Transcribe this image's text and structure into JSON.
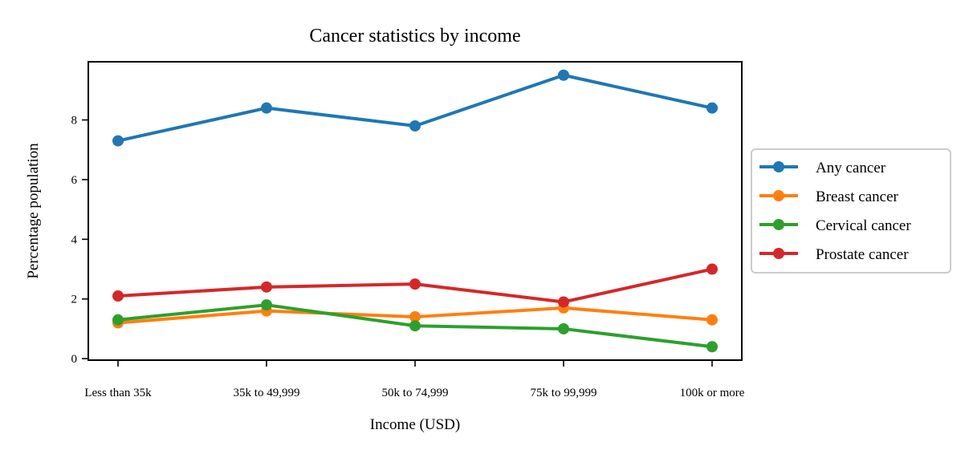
{
  "chart_data": {
    "type": "line",
    "title": "Cancer statistics by income",
    "xlabel": "Income (USD)",
    "ylabel": "Percentage population",
    "categories": [
      "Less than 35k",
      "35k to 49,999",
      "50k to 74,999",
      "75k to 99,999",
      "100k or more"
    ],
    "yticks": [
      0,
      2,
      4,
      6,
      8
    ],
    "ylim": [
      -0.05,
      9.95
    ],
    "grid": false,
    "legend_position": "center-right, outside plot",
    "series": [
      {
        "name": "Any cancer",
        "color": "#1f77b4",
        "values": [
          7.3,
          8.4,
          7.8,
          9.5,
          8.4
        ]
      },
      {
        "name": "Breast cancer",
        "color": "#ff7f0e",
        "values": [
          1.2,
          1.6,
          1.4,
          1.7,
          1.3
        ]
      },
      {
        "name": "Cervical cancer",
        "color": "#2ca02c",
        "values": [
          1.3,
          1.8,
          1.1,
          1.0,
          0.4
        ]
      },
      {
        "name": "Prostate cancer",
        "color": "#d62728",
        "values": [
          2.1,
          2.4,
          2.5,
          1.9,
          3.0
        ]
      }
    ]
  }
}
